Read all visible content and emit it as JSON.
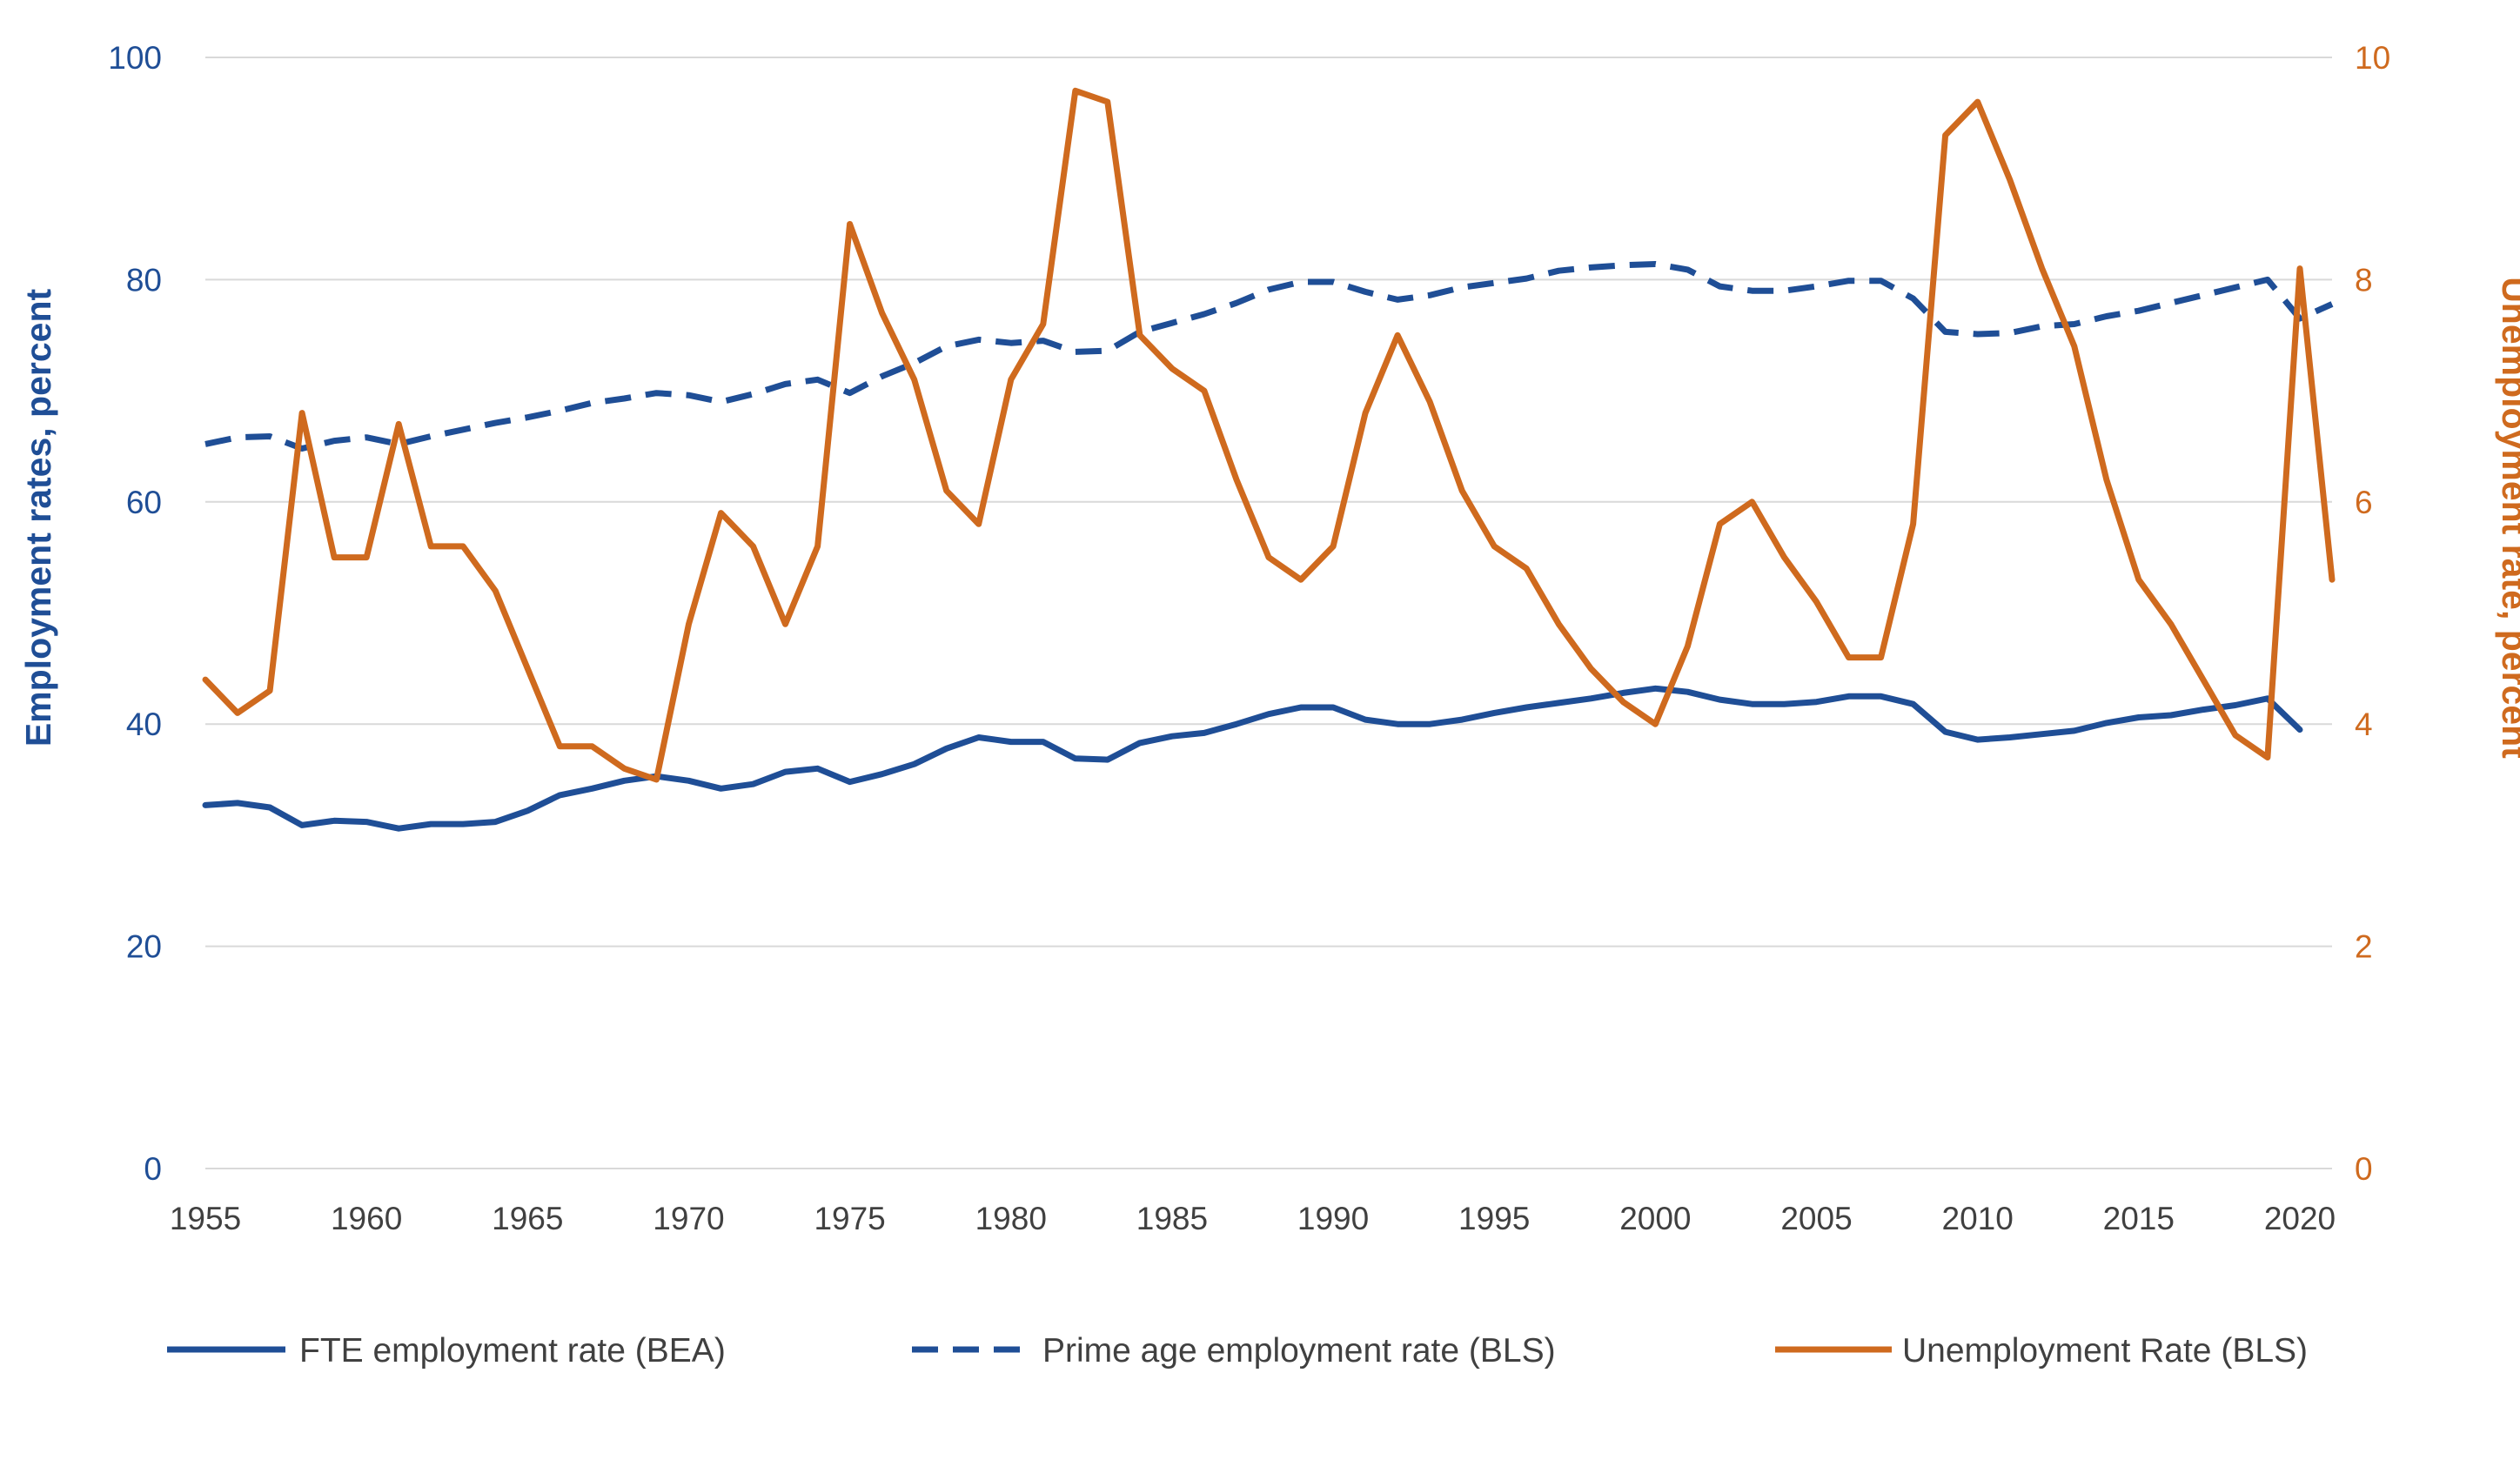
{
  "chart_data": {
    "type": "line",
    "x": [
      1955,
      1956,
      1957,
      1958,
      1959,
      1960,
      1961,
      1962,
      1963,
      1964,
      1965,
      1966,
      1967,
      1968,
      1969,
      1970,
      1971,
      1972,
      1973,
      1974,
      1975,
      1976,
      1977,
      1978,
      1979,
      1980,
      1981,
      1982,
      1983,
      1984,
      1985,
      1986,
      1987,
      1988,
      1989,
      1990,
      1991,
      1992,
      1993,
      1994,
      1995,
      1996,
      1997,
      1998,
      1999,
      2000,
      2001,
      2002,
      2003,
      2004,
      2005,
      2006,
      2007,
      2008,
      2009,
      2010,
      2011,
      2012,
      2013,
      2014,
      2015,
      2016,
      2017,
      2018,
      2019,
      2020,
      2021
    ],
    "x_ticks": [
      "1955",
      "1960",
      "1965",
      "1970",
      "1975",
      "1980",
      "1985",
      "1990",
      "1995",
      "2000",
      "2005",
      "2010",
      "2015",
      "2020"
    ],
    "y_left": {
      "label": "Employment rates, percent",
      "ylim": [
        0,
        100
      ],
      "ticks": [
        "0",
        "20",
        "40",
        "60",
        "80",
        "100"
      ],
      "color": "#1f4e96"
    },
    "y_right": {
      "label": "Unemployment rate, percent",
      "ylim": [
        0,
        10
      ],
      "ticks": [
        "0",
        "2",
        "4",
        "6",
        "8",
        "10"
      ],
      "color": "#cf6a1e"
    },
    "grid": "horizontal",
    "legend_position": "bottom",
    "series": [
      {
        "name": "FTE employment rate (BEA)",
        "axis": "left",
        "style": "solid",
        "color": "#1f4e96",
        "values": [
          32.7,
          32.9,
          32.5,
          30.9,
          31.3,
          31.2,
          30.6,
          31.0,
          31.0,
          31.2,
          32.2,
          33.6,
          34.2,
          34.9,
          35.3,
          34.9,
          34.2,
          34.6,
          35.7,
          36.0,
          34.8,
          35.5,
          36.4,
          37.8,
          38.8,
          38.4,
          38.4,
          36.9,
          36.8,
          38.3,
          38.9,
          39.2,
          40.0,
          40.9,
          41.5,
          41.5,
          40.4,
          40.0,
          40.0,
          40.4,
          41.0,
          41.5,
          41.9,
          42.3,
          42.8,
          43.2,
          42.9,
          42.2,
          41.8,
          41.8,
          42.0,
          42.5,
          42.5,
          41.8,
          39.3,
          38.6,
          38.8,
          39.1,
          39.4,
          40.1,
          40.6,
          40.8,
          41.3,
          41.7,
          42.3,
          39.5,
          null
        ]
      },
      {
        "name": "Prime age employment rate (BLS)",
        "axis": "left",
        "style": "dashed",
        "color": "#1f4e96",
        "values": [
          65.2,
          65.8,
          65.9,
          64.8,
          65.5,
          65.8,
          65.2,
          65.9,
          66.5,
          67.1,
          67.6,
          68.2,
          68.9,
          69.3,
          69.8,
          69.6,
          69.0,
          69.7,
          70.6,
          71.0,
          69.8,
          71.3,
          72.5,
          74.0,
          74.6,
          74.3,
          74.5,
          73.5,
          73.6,
          75.3,
          76.1,
          76.9,
          77.9,
          79.1,
          79.8,
          79.8,
          78.9,
          78.2,
          78.6,
          79.3,
          79.7,
          80.1,
          80.8,
          81.1,
          81.3,
          81.4,
          80.9,
          79.4,
          79.0,
          79.0,
          79.4,
          79.9,
          79.9,
          78.3,
          75.3,
          75.1,
          75.2,
          75.8,
          76.0,
          76.7,
          77.2,
          77.9,
          78.6,
          79.3,
          80.0,
          76.5,
          77.8
        ]
      },
      {
        "name": "Unemployment Rate (BLS)",
        "axis": "right",
        "style": "solid",
        "color": "#cf6a1e",
        "values": [
          4.4,
          4.1,
          4.3,
          6.8,
          5.5,
          5.5,
          6.7,
          5.6,
          5.6,
          5.2,
          4.5,
          3.8,
          3.8,
          3.6,
          3.5,
          4.9,
          5.9,
          5.6,
          4.9,
          5.6,
          8.5,
          7.7,
          7.1,
          6.1,
          5.8,
          7.1,
          7.6,
          9.7,
          9.6,
          7.5,
          7.2,
          7.0,
          6.2,
          5.5,
          5.3,
          5.6,
          6.8,
          7.5,
          6.9,
          6.1,
          5.6,
          5.4,
          4.9,
          4.5,
          4.2,
          4.0,
          4.7,
          5.8,
          6.0,
          5.5,
          5.1,
          4.6,
          4.6,
          5.8,
          9.3,
          9.6,
          8.9,
          8.1,
          7.4,
          6.2,
          5.3,
          4.9,
          4.4,
          3.9,
          3.7,
          8.1,
          5.3
        ]
      }
    ]
  }
}
